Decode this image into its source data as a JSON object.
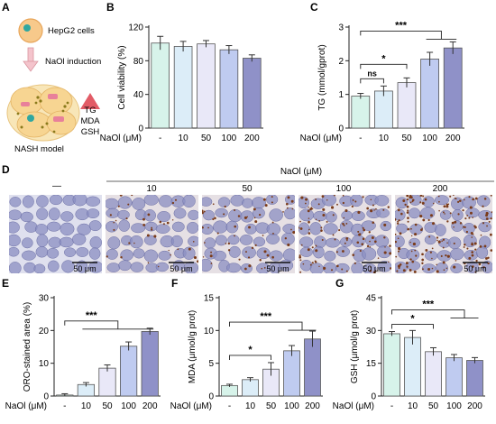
{
  "figure": {
    "panels": {
      "A": {
        "label": "A",
        "cell_label": "HepG2 cells",
        "induction_label": "NaOl induction",
        "model_label": "NASH model",
        "markers": [
          "TG",
          "MDA",
          "GSH"
        ]
      },
      "D": {
        "label": "D",
        "header": "NaOl  (μM)",
        "columns": [
          "—",
          "10",
          "50",
          "100",
          "200"
        ],
        "scalebar": "50 μm"
      }
    },
    "common": {
      "naol_label": "NaOl (μM)",
      "colors": [
        "#d7f3ea",
        "#dcedf8",
        "#e9e8f8",
        "#bfcbf0",
        "#8f91c8"
      ],
      "stroke_color": "#555555"
    }
  },
  "chart_data": [
    {
      "panel": "B",
      "type": "bar",
      "categories": [
        "-",
        "10",
        "50",
        "100",
        "200"
      ],
      "values": [
        101,
        97,
        100,
        93,
        83
      ],
      "errors": [
        8,
        6,
        4,
        5,
        4
      ],
      "ylabel": "Cell viability (%)",
      "xlabel": "NaOl (μM)",
      "ylim": [
        0,
        120
      ],
      "yticks": [
        0,
        40,
        80,
        120
      ],
      "significance": []
    },
    {
      "panel": "C",
      "type": "bar",
      "categories": [
        "-",
        "10",
        "50",
        "100",
        "200"
      ],
      "values": [
        0.95,
        1.1,
        1.35,
        2.05,
        2.38
      ],
      "errors": [
        0.08,
        0.15,
        0.14,
        0.2,
        0.18
      ],
      "ylabel": "TG (mmol/gprot)",
      "xlabel": "NaOl (μM)",
      "ylim": [
        0,
        3
      ],
      "yticks": [
        0,
        1,
        2,
        3
      ],
      "significance": [
        {
          "from": 0,
          "to": [
            1
          ],
          "label": "ns"
        },
        {
          "from": 0,
          "to": [
            2
          ],
          "label": "*"
        },
        {
          "from": 0,
          "to": [
            3,
            4
          ],
          "label": "***"
        }
      ]
    },
    {
      "panel": "E",
      "type": "bar",
      "categories": [
        "-",
        "10",
        "50",
        "100",
        "200"
      ],
      "values": [
        0.3,
        3.5,
        8.5,
        15.2,
        19.7
      ],
      "errors": [
        0.4,
        0.6,
        1.0,
        1.3,
        1.0
      ],
      "ylabel": "ORO-stained area (%)",
      "xlabel": "NaOl (μM)",
      "ylim": [
        0,
        30
      ],
      "yticks": [
        0,
        10,
        20,
        30
      ],
      "significance": [
        {
          "from": 0,
          "to": [
            1,
            2,
            3,
            4
          ],
          "label": "***"
        }
      ]
    },
    {
      "panel": "F",
      "type": "bar",
      "categories": [
        "-",
        "10",
        "50",
        "100",
        "200"
      ],
      "values": [
        1.6,
        2.5,
        4.1,
        6.9,
        8.7
      ],
      "errors": [
        0.2,
        0.3,
        1.0,
        0.8,
        1.2
      ],
      "ylabel": "MDA (μmol/g prot)",
      "xlabel": "NaOl (μM)",
      "ylim": [
        0,
        15
      ],
      "yticks": [
        0,
        5,
        10,
        15
      ],
      "significance": [
        {
          "from": 0,
          "to": [
            2
          ],
          "label": "*"
        },
        {
          "from": 0,
          "to": [
            3,
            4
          ],
          "label": "***"
        }
      ]
    },
    {
      "panel": "G",
      "type": "bar",
      "categories": [
        "-",
        "10",
        "50",
        "100",
        "200"
      ],
      "values": [
        28.5,
        26.8,
        20.3,
        17.5,
        16.3
      ],
      "errors": [
        1.0,
        3.2,
        1.8,
        1.5,
        1.3
      ],
      "ylabel": "GSH (μmol/g prot)",
      "xlabel": "NaOl (μM)",
      "ylim": [
        0,
        45
      ],
      "yticks": [
        0,
        15,
        30,
        45
      ],
      "significance": [
        {
          "from": 0,
          "to": [
            2
          ],
          "label": "*"
        },
        {
          "from": 0,
          "to": [
            3,
            4
          ],
          "label": "***"
        }
      ]
    }
  ]
}
